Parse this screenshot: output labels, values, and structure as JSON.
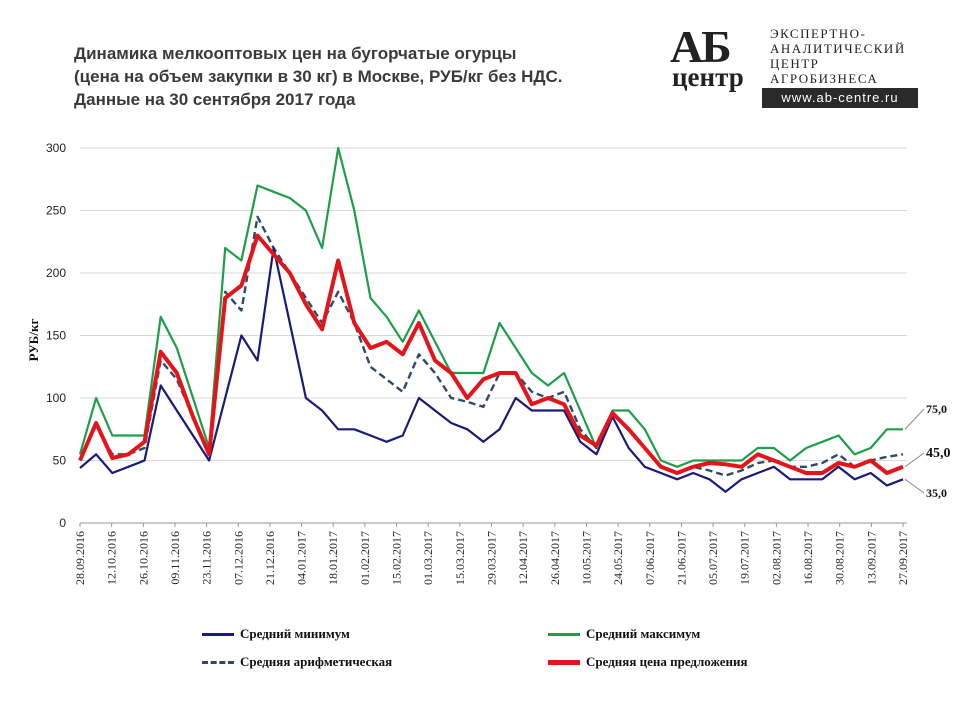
{
  "title": {
    "line1": "Динамика мелкооптовых цен на бугорчатые огурцы",
    "line2": "(цена на объем закупки в 30 кг) в Москве, РУБ/кг без НДС.",
    "line3": "Данные на 30 сентября 2017 года"
  },
  "logo": {
    "letters": "АБ",
    "sub": "центр",
    "line1": "ЭКСПЕРТНО-",
    "line2": "АНАЛИТИЧЕСКИЙ",
    "line3": "ЦЕНТР",
    "line4": "АГРОБИЗНЕСА",
    "url": "www.ab-centre.ru"
  },
  "chart_data": {
    "type": "line",
    "ylabel": "РУБ/кг",
    "ylim": [
      0,
      300
    ],
    "yticks": [
      0,
      50,
      100,
      150,
      200,
      250,
      300
    ],
    "grid": true,
    "legend_position": "bottom",
    "x_tick_labels": [
      "28.09.2016",
      "12.10.2016",
      "26.10.2016",
      "09.11.2016",
      "23.11.2016",
      "07.12.2016",
      "21.12.2016",
      "04.01.2017",
      "18.01.2017",
      "01.02.2017",
      "15.02.2017",
      "01.03.2017",
      "15.03.2017",
      "29.03.2017",
      "12.04.2017",
      "26.04.2017",
      "10.05.2017",
      "24.05.2017",
      "07.06.2017",
      "21.06.2017",
      "05.07.2017",
      "19.07.2017",
      "02.08.2017",
      "16.08.2017",
      "30.08.2017",
      "13.09.2017",
      "27.09.2017"
    ],
    "series": [
      {
        "name": "Средний минимум",
        "color": "#1a1a7a",
        "style": "solid",
        "values": [
          44,
          55,
          40,
          45,
          50,
          110,
          90,
          70,
          50,
          100,
          150,
          130,
          220,
          160,
          100,
          90,
          75,
          75,
          70,
          65,
          70,
          100,
          90,
          80,
          75,
          65,
          75,
          100,
          90,
          90,
          90,
          65,
          55,
          85,
          60,
          45,
          40,
          35,
          40,
          35,
          25,
          35,
          40,
          45,
          35,
          35,
          35,
          45,
          35,
          40,
          30,
          35
        ]
      },
      {
        "name": "Средний максимум",
        "color": "#1f9e4a",
        "style": "solid",
        "values": [
          55,
          100,
          70,
          70,
          70,
          165,
          140,
          100,
          60,
          220,
          210,
          270,
          265,
          260,
          250,
          220,
          300,
          250,
          180,
          165,
          145,
          170,
          145,
          120,
          120,
          120,
          160,
          140,
          120,
          110,
          120,
          90,
          60,
          90,
          90,
          75,
          50,
          45,
          50,
          50,
          50,
          50,
          60,
          60,
          50,
          60,
          65,
          70,
          55,
          60,
          75,
          75
        ]
      },
      {
        "name": "Средняя арифметическая",
        "color": "#2f4a66",
        "style": "dashed",
        "values": [
          50,
          78,
          55,
          55,
          60,
          130,
          115,
          85,
          55,
          185,
          170,
          245,
          220,
          200,
          180,
          160,
          185,
          160,
          125,
          115,
          105,
          135,
          120,
          100,
          97,
          93,
          120,
          120,
          105,
          100,
          105,
          75,
          60,
          88,
          75,
          60,
          45,
          40,
          45,
          42,
          38,
          42,
          48,
          50,
          45,
          45,
          48,
          55,
          45,
          50,
          53,
          55
        ]
      },
      {
        "name": "Средняя цена предложения",
        "color": "#e4141b",
        "style": "solid-thick",
        "values": [
          50,
          80,
          52,
          55,
          65,
          137,
          120,
          85,
          55,
          180,
          190,
          230,
          215,
          200,
          175,
          155,
          210,
          160,
          140,
          145,
          135,
          160,
          130,
          120,
          100,
          115,
          120,
          120,
          95,
          100,
          95,
          70,
          62,
          88,
          75,
          60,
          45,
          40,
          45,
          48,
          47,
          45,
          55,
          50,
          45,
          40,
          40,
          48,
          45,
          50,
          40,
          45
        ]
      }
    ],
    "end_labels": {
      "max": "75,0",
      "offer": "45,0",
      "min": "35,0"
    }
  }
}
